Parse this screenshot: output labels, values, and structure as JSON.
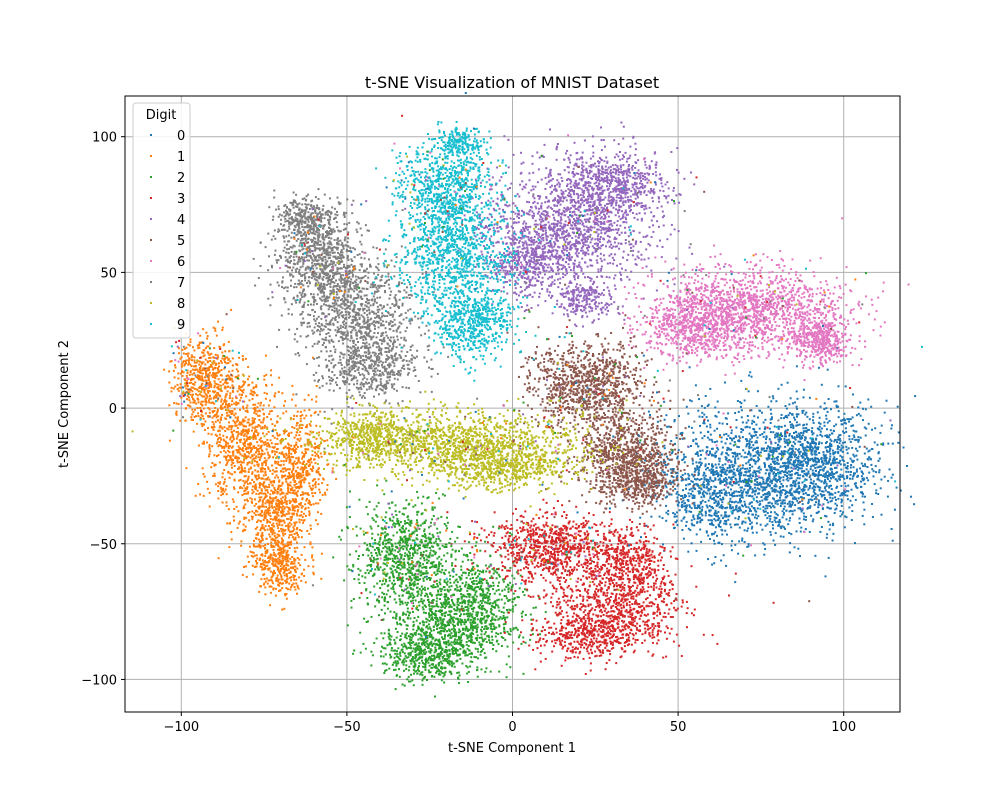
{
  "chart_data": {
    "type": "scatter",
    "title": "t-SNE Visualization of MNIST Dataset",
    "xlabel": "t-SNE Component 1",
    "ylabel": "t-SNE Component 2",
    "xlim": [
      -117,
      117
    ],
    "ylim": [
      -112,
      115
    ],
    "xticks": [
      -100,
      -50,
      0,
      50,
      100
    ],
    "yticks": [
      -100,
      -50,
      0,
      50,
      100
    ],
    "grid": true,
    "legend": {
      "title": "Digit",
      "placement": "top-left"
    },
    "series": [
      {
        "name": "0",
        "color": "#1f77b4",
        "points": 2600,
        "blobs": [
          [
            77,
            -22,
            22,
            18,
            1
          ],
          [
            92,
            -22,
            12,
            14,
            0.45
          ],
          [
            62,
            -32,
            12,
            12,
            0.4
          ]
        ]
      },
      {
        "name": "1",
        "color": "#ff7f0e",
        "points": 2600,
        "blobs": [
          [
            -92,
            10,
            7,
            11,
            0.6
          ],
          [
            -82,
            -12,
            8,
            16,
            0.8
          ],
          [
            -72,
            -38,
            7,
            16,
            0.8
          ],
          [
            -64,
            -20,
            6,
            14,
            0.5
          ],
          [
            -70,
            -58,
            5,
            8,
            0.35
          ]
        ]
      },
      {
        "name": "2",
        "color": "#2ca02c",
        "points": 2400,
        "blobs": [
          [
            -32,
            -55,
            11,
            13,
            0.8
          ],
          [
            -20,
            -80,
            14,
            11,
            0.8
          ],
          [
            -25,
            -92,
            9,
            6,
            0.4
          ],
          [
            -10,
            -70,
            8,
            12,
            0.4
          ]
        ]
      },
      {
        "name": "3",
        "color": "#d62728",
        "points": 2300,
        "blobs": [
          [
            12,
            -52,
            13,
            9,
            0.8
          ],
          [
            32,
            -72,
            13,
            12,
            0.8
          ],
          [
            22,
            -84,
            11,
            6,
            0.4
          ],
          [
            35,
            -55,
            8,
            8,
            0.35
          ]
        ]
      },
      {
        "name": "4",
        "color": "#9467bd",
        "points": 2500,
        "blobs": [
          [
            18,
            68,
            18,
            15,
            1
          ],
          [
            30,
            82,
            11,
            9,
            0.5
          ],
          [
            5,
            55,
            9,
            9,
            0.4
          ],
          [
            22,
            40,
            6,
            5,
            0.2
          ]
        ]
      },
      {
        "name": "5",
        "color": "#8c564b",
        "points": 2100,
        "blobs": [
          [
            22,
            8,
            12,
            11,
            0.8
          ],
          [
            34,
            -18,
            10,
            11,
            0.8
          ],
          [
            40,
            -28,
            6,
            5,
            0.25
          ]
        ]
      },
      {
        "name": "6",
        "color": "#e377c2",
        "points": 2400,
        "blobs": [
          [
            72,
            36,
            20,
            11,
            1
          ],
          [
            55,
            30,
            10,
            8,
            0.4
          ],
          [
            93,
            25,
            6,
            6,
            0.3
          ]
        ]
      },
      {
        "name": "7",
        "color": "#7f7f7f",
        "points": 2400,
        "blobs": [
          [
            -58,
            55,
            10,
            12,
            0.8
          ],
          [
            -47,
            35,
            12,
            13,
            0.8
          ],
          [
            -43,
            15,
            10,
            8,
            0.5
          ],
          [
            -63,
            70,
            6,
            5,
            0.25
          ]
        ]
      },
      {
        "name": "8",
        "color": "#bcbd22",
        "points": 2300,
        "blobs": [
          [
            -18,
            -13,
            28,
            8,
            1
          ],
          [
            -2,
            -22,
            13,
            6,
            0.4
          ],
          [
            -42,
            -10,
            9,
            6,
            0.3
          ]
        ]
      },
      {
        "name": "9",
        "color": "#17becf",
        "points": 2400,
        "blobs": [
          [
            -20,
            80,
            10,
            13,
            0.8
          ],
          [
            -18,
            55,
            12,
            13,
            0.8
          ],
          [
            -12,
            32,
            9,
            9,
            0.6
          ],
          [
            -16,
            98,
            5,
            4,
            0.2
          ]
        ]
      }
    ],
    "noise_points_per_series": 70
  }
}
